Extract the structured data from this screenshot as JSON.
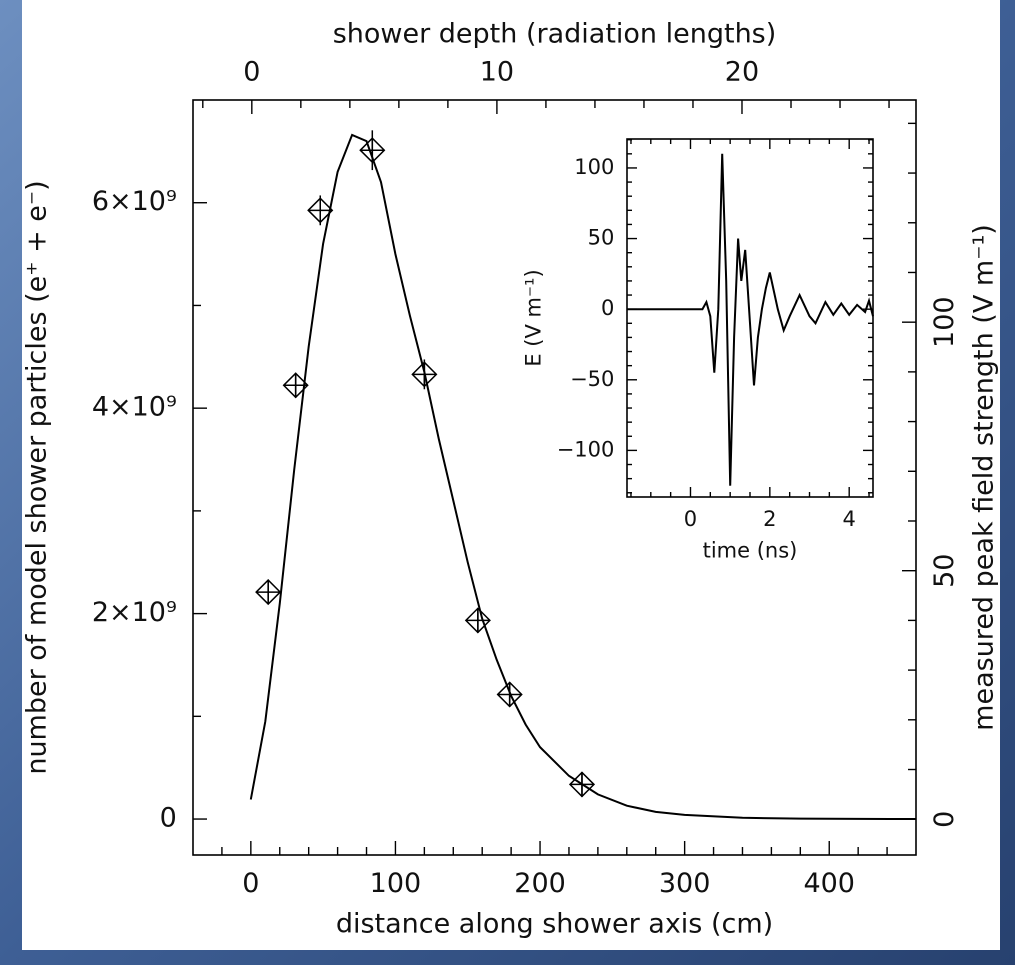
{
  "chart_data": [
    {
      "type": "line",
      "xlabel": "distance along shower axis (cm)",
      "ylabel": "number of model shower particles (e⁺ + e⁻)",
      "y2label": "measured peak field strength (V m⁻¹)",
      "x2label": "shower depth (radiation lengths)",
      "xlim": [
        -40,
        460
      ],
      "xticks": [
        0,
        100,
        200,
        300,
        400
      ],
      "xminorticks": [
        -20,
        20,
        40,
        60,
        80,
        120,
        140,
        160,
        180,
        220,
        240,
        260,
        280,
        320,
        340,
        360,
        380,
        420,
        440
      ],
      "ylim": [
        -350000000,
        7000000000
      ],
      "yticks": [
        0,
        {
          "value": 2000000000,
          "label": "2×10⁹"
        },
        {
          "value": 4000000000,
          "label": "4×10⁹"
        },
        {
          "value": 6000000000,
          "label": "6×10⁹"
        }
      ],
      "yminorticks": [
        1000000000,
        3000000000,
        5000000000
      ],
      "y2lim": [
        -7.2,
        144.7
      ],
      "y2ticks": [
        0,
        50,
        100
      ],
      "y2minorticks": [
        10,
        20,
        30,
        40,
        60,
        70,
        80,
        90,
        110,
        120,
        130,
        140
      ],
      "x2lim": [
        -2.4,
        27.1
      ],
      "x2ticks": [
        0,
        10,
        20
      ],
      "x2minorticks": [
        -2,
        2,
        4,
        6,
        8,
        12,
        14,
        16,
        18,
        22,
        24,
        26
      ],
      "series": [
        {
          "type": "line",
          "color": "#000000",
          "x": [
            0,
            10,
            20,
            30,
            40,
            50,
            60,
            70,
            80,
            90,
            100,
            110,
            120,
            130,
            140,
            150,
            160,
            170,
            180,
            190,
            200,
            220,
            240,
            260,
            280,
            300,
            340,
            380,
            420,
            460
          ],
          "values": [
            190000000,
            950000000,
            2100000000,
            3400000000,
            4600000000,
            5600000000,
            6300000000,
            6660000000,
            6600000000,
            6200000000,
            5500000000,
            4900000000,
            4350000000,
            3700000000,
            3100000000,
            2500000000,
            1950000000,
            1550000000,
            1200000000,
            920000000,
            700000000,
            420000000,
            240000000,
            130000000,
            70000000,
            40000000,
            12000000,
            4000000,
            1000000,
            0
          ]
        },
        {
          "type": "scatter",
          "axis": "y2",
          "color": "#000000",
          "x": [
            12,
            31,
            48,
            84,
            120,
            157,
            179,
            229
          ],
          "values": [
            45.7,
            87.3,
            122.5,
            134.6,
            89.5,
            40.0,
            25.1,
            7.0
          ],
          "errors": [
            2.5,
            2.5,
            3,
            4,
            3,
            2.5,
            2.5,
            2.5
          ]
        }
      ]
    },
    {
      "type": "line",
      "xlabel": "time (ns)",
      "ylabel": "E (V m⁻¹)",
      "xlim": [
        -1.6,
        4.6
      ],
      "xticks": [
        0,
        2,
        4
      ],
      "xminorticks": [
        -1.5,
        -1,
        -0.5,
        0.5,
        1,
        1.5,
        2.5,
        3,
        3.5,
        4.5
      ],
      "ylim": [
        -133,
        120.5
      ],
      "yticks": [
        {
          "value": -100,
          "label": "−100"
        },
        {
          "value": -50,
          "label": "−50"
        },
        0,
        50,
        100
      ],
      "yminorticks": [
        -130,
        -120,
        -110,
        -90,
        -80,
        -70,
        -60,
        -40,
        -30,
        -20,
        -10,
        10,
        20,
        30,
        40,
        60,
        70,
        80,
        90,
        110,
        120
      ],
      "series": [
        {
          "type": "line",
          "color": "#000000",
          "x": [
            -1.6,
            0.3,
            0.4,
            0.5,
            0.6,
            0.7,
            0.8,
            0.9,
            1.0,
            1.1,
            1.2,
            1.28,
            1.38,
            1.5,
            1.6,
            1.7,
            1.8,
            1.9,
            2.0,
            2.2,
            2.35,
            2.5,
            2.75,
            3.0,
            3.15,
            3.4,
            3.6,
            3.8,
            4.0,
            4.2,
            4.4,
            4.5,
            4.6
          ],
          "values": [
            0,
            0,
            5,
            -5,
            -45,
            0,
            110,
            20,
            -125,
            -20,
            50,
            20,
            42,
            -10,
            -54,
            -20,
            0,
            15,
            26,
            0,
            -15,
            -5,
            10,
            -5,
            -10,
            5,
            -4,
            4,
            -4,
            3,
            -2,
            6,
            -5
          ]
        }
      ]
    }
  ]
}
